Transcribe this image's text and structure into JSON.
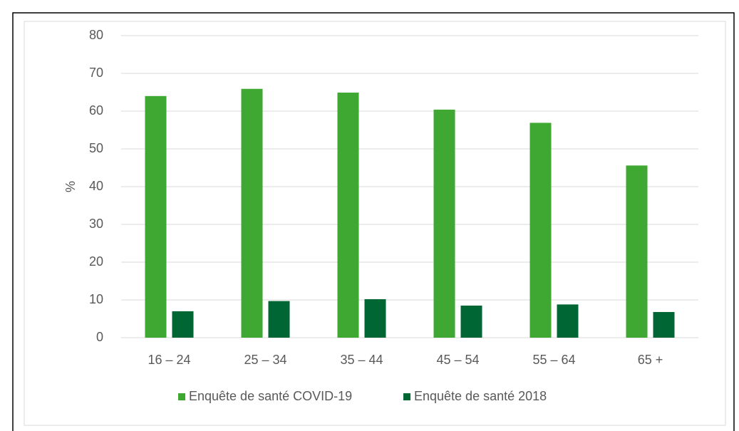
{
  "chart_data": {
    "type": "bar",
    "y_label": "%",
    "categories": [
      "16 – 24",
      "25 – 34",
      "35 – 44",
      "45 – 54",
      "55 – 64",
      "65 +"
    ],
    "series": [
      {
        "name": "Enquête de santé COVID-19",
        "color": "#3ea832",
        "values": [
          64,
          65.9,
          64.9,
          60.4,
          56.9,
          45.6
        ]
      },
      {
        "name": "Enquête de santé 2018",
        "color": "#006633",
        "values": [
          7,
          9.7,
          10.2,
          8.5,
          8.8,
          6.8
        ]
      }
    ],
    "ylim": [
      0,
      80
    ],
    "yticks": [
      0,
      10,
      20,
      30,
      40,
      50,
      60,
      70,
      80
    ],
    "grid": true,
    "legend": "bottom"
  }
}
